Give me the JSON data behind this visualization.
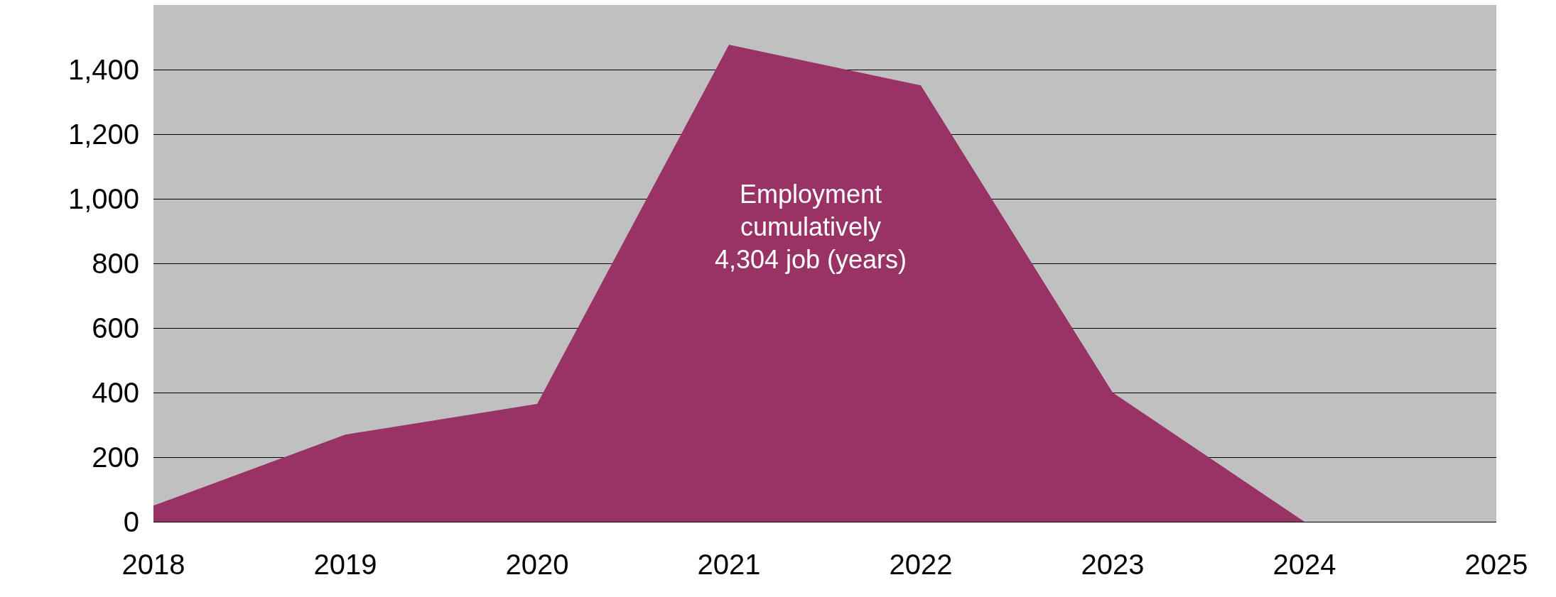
{
  "chart_data": {
    "type": "area",
    "categories": [
      "2018",
      "2019",
      "2020",
      "2021",
      "2022",
      "2023",
      "2024",
      "2025"
    ],
    "series": [
      {
        "color": "#993366",
        "values": [
          50,
          270,
          365,
          1477,
          1351,
          400,
          0,
          null
        ]
      }
    ],
    "ylim": [
      0,
      1600
    ],
    "yticks": [
      0,
      200,
      400,
      600,
      800,
      {
        "value": 1000,
        "label": "1,000"
      },
      {
        "value": 1200,
        "label": "1,200"
      },
      {
        "value": 1400,
        "label": "1,400"
      }
    ],
    "grid": "y",
    "marker": "none",
    "annotations": [
      "Employment\ncumulatively\n4,304 job (years)"
    ]
  }
}
